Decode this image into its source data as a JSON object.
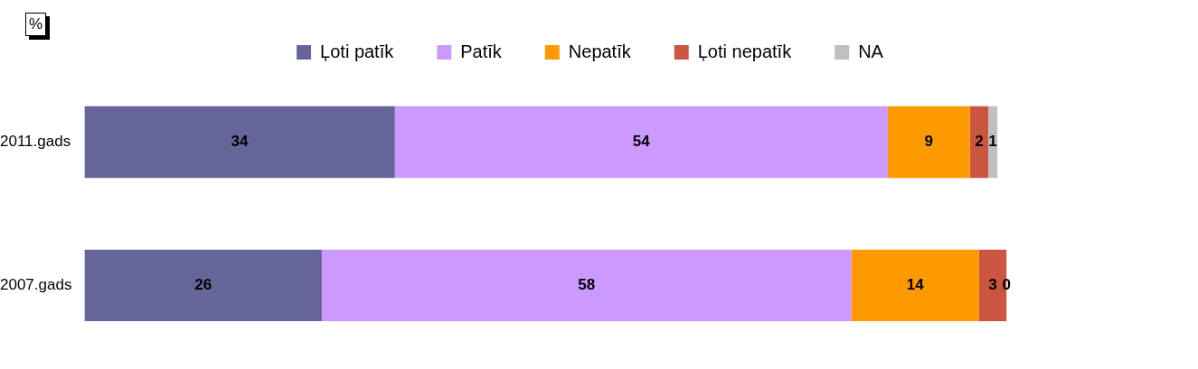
{
  "chart_data": {
    "type": "bar",
    "orientation": "horizontal",
    "stacked": true,
    "categories": [
      "2011.gads",
      "2007.gads"
    ],
    "series": [
      {
        "name": "Ļoti patīk",
        "color": "#65659a",
        "values": [
          34,
          26
        ]
      },
      {
        "name": "Patīk",
        "color": "#cc99ff",
        "values": [
          54,
          58
        ]
      },
      {
        "name": "Nepatīk",
        "color": "#ff9900",
        "values": [
          9,
          14
        ]
      },
      {
        "name": "Ļoti nepatīk",
        "color": "#cc5540",
        "values": [
          2,
          3
        ]
      },
      {
        "name": "NA",
        "color": "#c0c0c0",
        "values": [
          1,
          0
        ]
      }
    ],
    "tick_labels": "y",
    "legend": "top",
    "data_labels": true,
    "annotations": [
      "%"
    ]
  }
}
